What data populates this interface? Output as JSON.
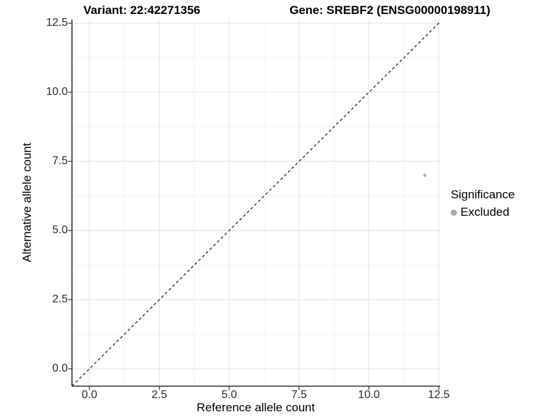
{
  "chart_data": {
    "type": "scatter",
    "title_left": "Variant: 22:42271356",
    "title_right": "Gene: SREBF2 (ENSG00000198911)",
    "xlabel": "Reference allele count",
    "ylabel": "Alternative allele count",
    "xlim": [
      -0.625,
      12.55
    ],
    "ylim": [
      -0.63,
      12.63
    ],
    "x_ticks": [
      0,
      2.5,
      5,
      7.5,
      10,
      12.5
    ],
    "y_ticks": [
      0,
      2.5,
      5,
      7.5,
      10,
      12.5
    ],
    "x_tick_labels": [
      "0.0",
      "2.5",
      "5.0",
      "7.5",
      "10.0",
      "12.5"
    ],
    "y_tick_labels": [
      "0.0",
      "2.5",
      "5.0",
      "7.5",
      "10.0",
      "12.5"
    ],
    "x_minor_ticks": [
      1.25,
      3.75,
      6.25,
      8.75,
      11.25
    ],
    "y_minor_ticks": [
      1.25,
      3.75,
      6.25,
      8.75,
      11.25
    ],
    "grid": true,
    "reference_line": {
      "type": "identity",
      "style": "dashed",
      "color": "#000000"
    },
    "series": [
      {
        "name": "Excluded",
        "color": "#b4b4b4",
        "points": [
          {
            "x": 12,
            "y": 7
          }
        ]
      }
    ],
    "legend": {
      "title": "Significance",
      "position": "right",
      "items": [
        {
          "label": "Excluded",
          "color": "#a8a8a8"
        }
      ]
    },
    "colors": {
      "grid_major": "#e4e4e4",
      "grid_minor": "#f2f2f2",
      "axis_line": "#333333",
      "tick_mark": "#333333",
      "tick_text": "#2b2b2b"
    }
  }
}
